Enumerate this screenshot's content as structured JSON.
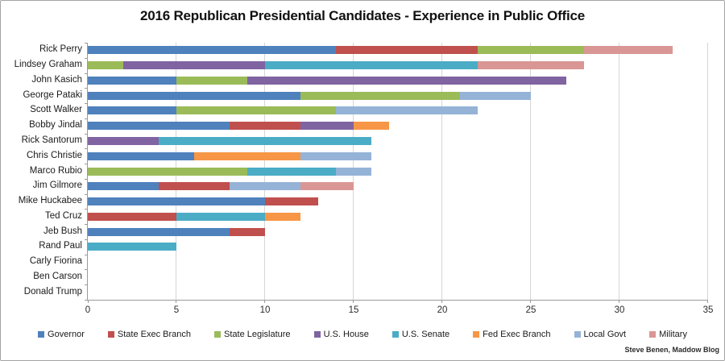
{
  "attribution": "Steve Benen, Maddow Blog",
  "chart_data": {
    "type": "bar",
    "orientation": "horizontal",
    "stacked": true,
    "title": "2016 Republican Presidential Candidates - Experience in Public Office",
    "xlabel": "",
    "ylabel": "",
    "xlim": [
      0,
      35
    ],
    "x_ticks": [
      0,
      5,
      10,
      15,
      20,
      25,
      30,
      35
    ],
    "grid": "vertical",
    "legend_position": "bottom",
    "categories": [
      "Rick Perry",
      "Lindsey Graham",
      "John Kasich",
      "George Pataki",
      "Scott Walker",
      "Bobby Jindal",
      "Rick Santorum",
      "Chris Christie",
      "Marco Rubio",
      "Jim Gilmore",
      "Mike Huckabee",
      "Ted Cruz",
      "Jeb Bush",
      "Rand Paul",
      "Carly Fiorina",
      "Ben Carson",
      "Donald Trump"
    ],
    "series": [
      {
        "name": "Governor",
        "color": "#4F81BD",
        "values": [
          14,
          0,
          5,
          12,
          5,
          8,
          0,
          6,
          0,
          4,
          10,
          0,
          8,
          0,
          0,
          0,
          0
        ]
      },
      {
        "name": "State Exec Branch",
        "color": "#C0504D",
        "values": [
          8,
          0,
          0,
          0,
          0,
          4,
          0,
          0,
          0,
          4,
          3,
          5,
          2,
          0,
          0,
          0,
          0
        ]
      },
      {
        "name": "State Legislature",
        "color": "#9BBB59",
        "values": [
          6,
          2,
          4,
          9,
          9,
          0,
          0,
          0,
          9,
          0,
          0,
          0,
          0,
          0,
          0,
          0,
          0
        ]
      },
      {
        "name": "U.S. House",
        "color": "#8064A2",
        "values": [
          0,
          8,
          18,
          0,
          0,
          3,
          4,
          0,
          0,
          0,
          0,
          0,
          0,
          0,
          0,
          0,
          0
        ]
      },
      {
        "name": "U.S. Senate",
        "color": "#4BACC6",
        "values": [
          0,
          12,
          0,
          0,
          0,
          0,
          12,
          0,
          5,
          0,
          0,
          5,
          0,
          5,
          0,
          0,
          0
        ]
      },
      {
        "name": "Fed Exec Branch",
        "color": "#F79646",
        "values": [
          0,
          0,
          0,
          0,
          0,
          2,
          0,
          6,
          0,
          0,
          0,
          2,
          0,
          0,
          0,
          0,
          0
        ]
      },
      {
        "name": "Local Govt",
        "color": "#95B3D7",
        "values": [
          0,
          0,
          0,
          4,
          8,
          0,
          0,
          4,
          2,
          4,
          0,
          0,
          0,
          0,
          0,
          0,
          0
        ]
      },
      {
        "name": "Military",
        "color": "#D99694",
        "values": [
          5,
          6,
          0,
          0,
          0,
          0,
          0,
          0,
          0,
          3,
          0,
          0,
          0,
          0,
          0,
          0,
          0
        ]
      }
    ]
  }
}
